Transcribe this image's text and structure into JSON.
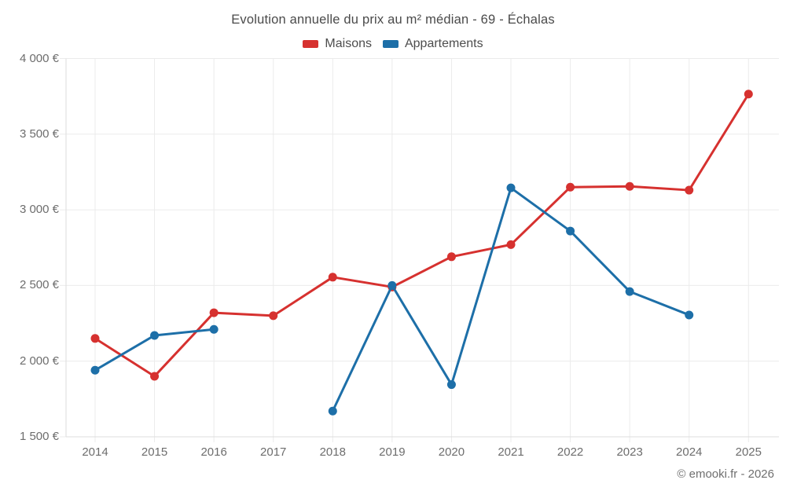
{
  "chart": {
    "title": "Evolution annuelle du prix au m² médian - 69 - Échalas"
  },
  "footer": {
    "copyright": "© emooki.fr - 2026"
  },
  "colors": {
    "maisons": "#d6312f",
    "appartements": "#1d6fa8",
    "gridline": "#ebebeb",
    "axis": "#dddddd",
    "tick_text": "#6d6d6d"
  },
  "chart_data": {
    "type": "line",
    "title": "Evolution annuelle du prix au m² médian - 69 - Échalas",
    "categories": [
      "2014",
      "2015",
      "2016",
      "2017",
      "2018",
      "2019",
      "2020",
      "2021",
      "2022",
      "2023",
      "2024",
      "2025"
    ],
    "series": [
      {
        "name": "Maisons",
        "color": "#d6312f",
        "values": [
          2150,
          1900,
          2320,
          2300,
          2555,
          2490,
          2690,
          2770,
          3150,
          3155,
          3130,
          3765
        ]
      },
      {
        "name": "Appartements",
        "color": "#1d6fa8",
        "values": [
          1940,
          2170,
          2210,
          null,
          1670,
          2500,
          1845,
          3145,
          2860,
          2460,
          2305,
          null
        ]
      }
    ],
    "xlabel": "",
    "ylabel": "",
    "ylim": [
      1500,
      4000
    ],
    "y_tick_step": 500,
    "y_tick_labels": [
      "1 500 €",
      "2 000 €",
      "2 500 €",
      "3 000 €",
      "3 500 €",
      "4 000 €"
    ],
    "currency_suffix": " €",
    "grid": true,
    "legend_position": "top"
  }
}
